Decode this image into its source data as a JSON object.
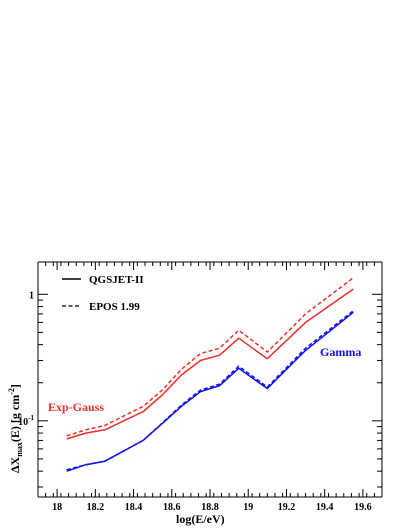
{
  "chart_data": {
    "type": "line",
    "xlabel": "log(E/eV)",
    "ylabel": "ΔX",
    "ylabel_sub": "max",
    "ylabel_tail": "(E) [g cm",
    "ylabel_sup": "-2",
    "ylabel_end": "]",
    "xlim": [
      17.9,
      19.7
    ],
    "ylim": [
      0.025,
      1.8
    ],
    "yscale": "log",
    "x_ticks": [
      18,
      18.2,
      18.4,
      18.6,
      18.8,
      19,
      19.2,
      19.4,
      19.6
    ],
    "x_tick_labels": [
      "18",
      "18.2",
      "18.4",
      "18.6",
      "18.8",
      "19",
      "19.2",
      "19.4",
      "19.6"
    ],
    "y_ticks": [
      {
        "value": 0.1,
        "base": "10",
        "exp": "-1"
      },
      {
        "value": 1,
        "base": "1",
        "exp": ""
      }
    ],
    "legend": {
      "placement": "top-left",
      "entries": [
        {
          "label": "QGSJET-II",
          "style": "solid"
        },
        {
          "label": "EPOS 1.99",
          "style": "dashed"
        }
      ]
    },
    "series_labels": {
      "exp_gauss": {
        "text": "Exp-Gauss",
        "color": "#e8302a"
      },
      "gamma": {
        "text": "Gamma",
        "color": "#1010e8"
      }
    },
    "series": [
      {
        "group": "exp_gauss",
        "model": "QGSJET-II",
        "color": "#e8302a",
        "style": "solid",
        "x": [
          18.05,
          18.15,
          18.25,
          18.45,
          18.55,
          18.65,
          18.75,
          18.85,
          18.95,
          19.1,
          19.3,
          19.55
        ],
        "y": [
          0.072,
          0.08,
          0.085,
          0.118,
          0.16,
          0.23,
          0.3,
          0.33,
          0.45,
          0.31,
          0.6,
          1.1
        ]
      },
      {
        "group": "exp_gauss",
        "model": "EPOS 1.99",
        "color": "#e8302a",
        "style": "dashed",
        "x": [
          18.05,
          18.15,
          18.25,
          18.45,
          18.55,
          18.65,
          18.75,
          18.85,
          18.95,
          19.1,
          19.3,
          19.55
        ],
        "y": [
          0.076,
          0.085,
          0.092,
          0.13,
          0.175,
          0.255,
          0.34,
          0.375,
          0.52,
          0.35,
          0.7,
          1.35
        ]
      },
      {
        "group": "gamma",
        "model": "QGSJET-II",
        "color": "#1010e8",
        "style": "solid",
        "x": [
          18.05,
          18.15,
          18.25,
          18.45,
          18.55,
          18.65,
          18.75,
          18.85,
          18.95,
          19.1,
          19.3,
          19.55
        ],
        "y": [
          0.04,
          0.045,
          0.048,
          0.07,
          0.095,
          0.13,
          0.17,
          0.19,
          0.26,
          0.18,
          0.36,
          0.72
        ]
      },
      {
        "group": "gamma",
        "model": "EPOS 1.99",
        "color": "#1010e8",
        "style": "dashed",
        "x": [
          18.05,
          18.15,
          18.25,
          18.45,
          18.55,
          18.65,
          18.75,
          18.85,
          18.95,
          19.1,
          19.3,
          19.55
        ],
        "y": [
          0.041,
          0.045,
          0.048,
          0.07,
          0.096,
          0.133,
          0.175,
          0.195,
          0.27,
          0.185,
          0.375,
          0.74
        ]
      }
    ]
  }
}
